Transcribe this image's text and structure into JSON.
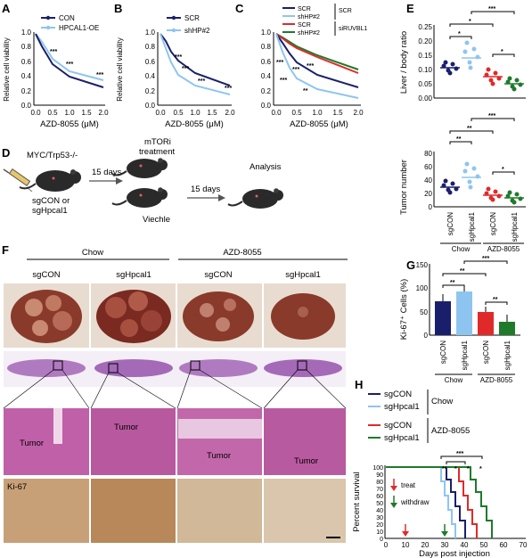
{
  "panel_labels": {
    "A": "A",
    "B": "B",
    "C": "C",
    "D": "D",
    "E": "E",
    "F": "F",
    "G": "G",
    "H": "H"
  },
  "panel_A": {
    "ylabel": "Relative cell viability",
    "xlabel": "AZD-8055 (μM)",
    "xticks": [
      "0.0",
      "0.5",
      "1.0",
      "1.5",
      "2.0"
    ],
    "yticks": [
      "0.0",
      "0.2",
      "0.4",
      "0.6",
      "0.8",
      "1.0"
    ],
    "legend": [
      "CON",
      "HPCAL1-OE"
    ],
    "sig": [
      "***",
      "***",
      "***"
    ]
  },
  "panel_B": {
    "xlabel": "AZD-8055 (μM)",
    "xticks": [
      "0.0",
      "0.5",
      "1.0",
      "1.5",
      "2.0"
    ],
    "yticks": [
      "0.0",
      "0.2",
      "0.4",
      "0.6",
      "0.8",
      "1.0"
    ],
    "legend": [
      "SCR",
      "shHP#2"
    ],
    "sig": [
      "***",
      "***",
      "***",
      "***"
    ]
  },
  "panel_C": {
    "xlabel": "AZD-8055 (μM)",
    "xticks": [
      "0.0",
      "0.5",
      "1.0",
      "1.5",
      "2.0"
    ],
    "yticks": [
      "0.0",
      "0.2",
      "0.4",
      "0.6",
      "0.8",
      "1.0"
    ],
    "legend": [
      "SCR",
      "shHP#2",
      "SCR",
      "shHP#2"
    ],
    "group_labels": [
      "SCR",
      "siRUVBL1"
    ],
    "sig": [
      "***",
      "***",
      "***",
      "***",
      "**"
    ]
  },
  "panel_D": {
    "mouse_label": "MYC/Trp53-/-",
    "sg_label": "sgCON or",
    "sg_label2": "sgHpcal1",
    "days1": "15 days",
    "treatment": "mTORi",
    "treatment2": "treatment",
    "vehicle": "Viechle",
    "days2": "15 days",
    "analysis": "Analysis"
  },
  "panel_E": {
    "ylabel_top": "Liver / body ratio",
    "yticks_top": [
      "0.00",
      "0.05",
      "0.10",
      "0.15",
      "0.20",
      "0.25"
    ],
    "ylabel_bottom": "Tumor number",
    "yticks_bottom": [
      "0",
      "20",
      "40",
      "60",
      "80"
    ],
    "xcats": [
      "sgCON",
      "sgHpcal1",
      "sgCON",
      "sgHpcal1"
    ],
    "groups": [
      "Chow",
      "AZD-8055"
    ],
    "sig_top": [
      "*",
      "*",
      "***",
      "*"
    ],
    "sig_bottom": [
      "**",
      "**",
      "***",
      "*"
    ]
  },
  "panel_F": {
    "groups": [
      "Chow",
      "AZD-8055"
    ],
    "cols": [
      "sgCON",
      "sgHpcal1",
      "sgCON",
      "sgHpcal1"
    ],
    "tumor_label": "Tumor",
    "ki67": "Ki-67"
  },
  "panel_G": {
    "ylabel": "Ki-67⁺ Cells (%)",
    "yticks": [
      "0",
      "50",
      "100",
      "150"
    ],
    "xcats": [
      "sgCON",
      "sgHpcal1",
      "sgCON",
      "sgHpcal1"
    ],
    "groups": [
      "Chow",
      "AZD-8055"
    ],
    "sig": [
      "**",
      "**",
      "***",
      "**"
    ]
  },
  "panel_H": {
    "legend": [
      "sgCON",
      "sgHpcal1",
      "sgCON",
      "sgHpcal1"
    ],
    "groups": [
      "Chow",
      "AZD-8055"
    ],
    "ylabel": "Percent survival",
    "xlabel": "Days post injection",
    "xticks": [
      "0",
      "10",
      "20",
      "30",
      "40",
      "50",
      "60",
      "70"
    ],
    "yticks": [
      "0",
      "10",
      "20",
      "30",
      "40",
      "50",
      "60",
      "70",
      "80",
      "90",
      "100"
    ],
    "treat": "treat",
    "withdraw": "withdraw",
    "sig": [
      "**",
      "*",
      "*",
      "*",
      "***"
    ]
  },
  "colors": {
    "navy": "#1a1f6b",
    "light_blue": "#8ec5f0",
    "red": "#e02a2a",
    "green": "#1f7a2a"
  }
}
